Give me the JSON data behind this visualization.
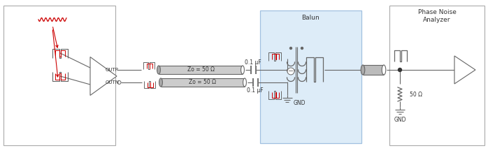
{
  "bg_color": "#ffffff",
  "balun_fill": "#daeaf8",
  "balun_fill_alpha": 0.85,
  "text_color": "#333333",
  "red_color": "#cc0000",
  "wire_color": "#555555",
  "gray": "#666666",
  "lgray": "#aaaaaa",
  "title_pna": "Phase Noise\nAnalyzer",
  "label_outp": "OUTP",
  "label_outn": "OUTN",
  "label_zo1": "Zo = 50 Ω",
  "label_zo2": "Zo = 50 Ω",
  "label_c1": "0.1 μF",
  "label_c2": "0.1 μF",
  "label_50ohm": "50 Ω",
  "label_gnd_pna": "GND",
  "label_gnd_balun": "GND",
  "label_balun": "Balun",
  "fig_width": 6.98,
  "fig_height": 2.19
}
